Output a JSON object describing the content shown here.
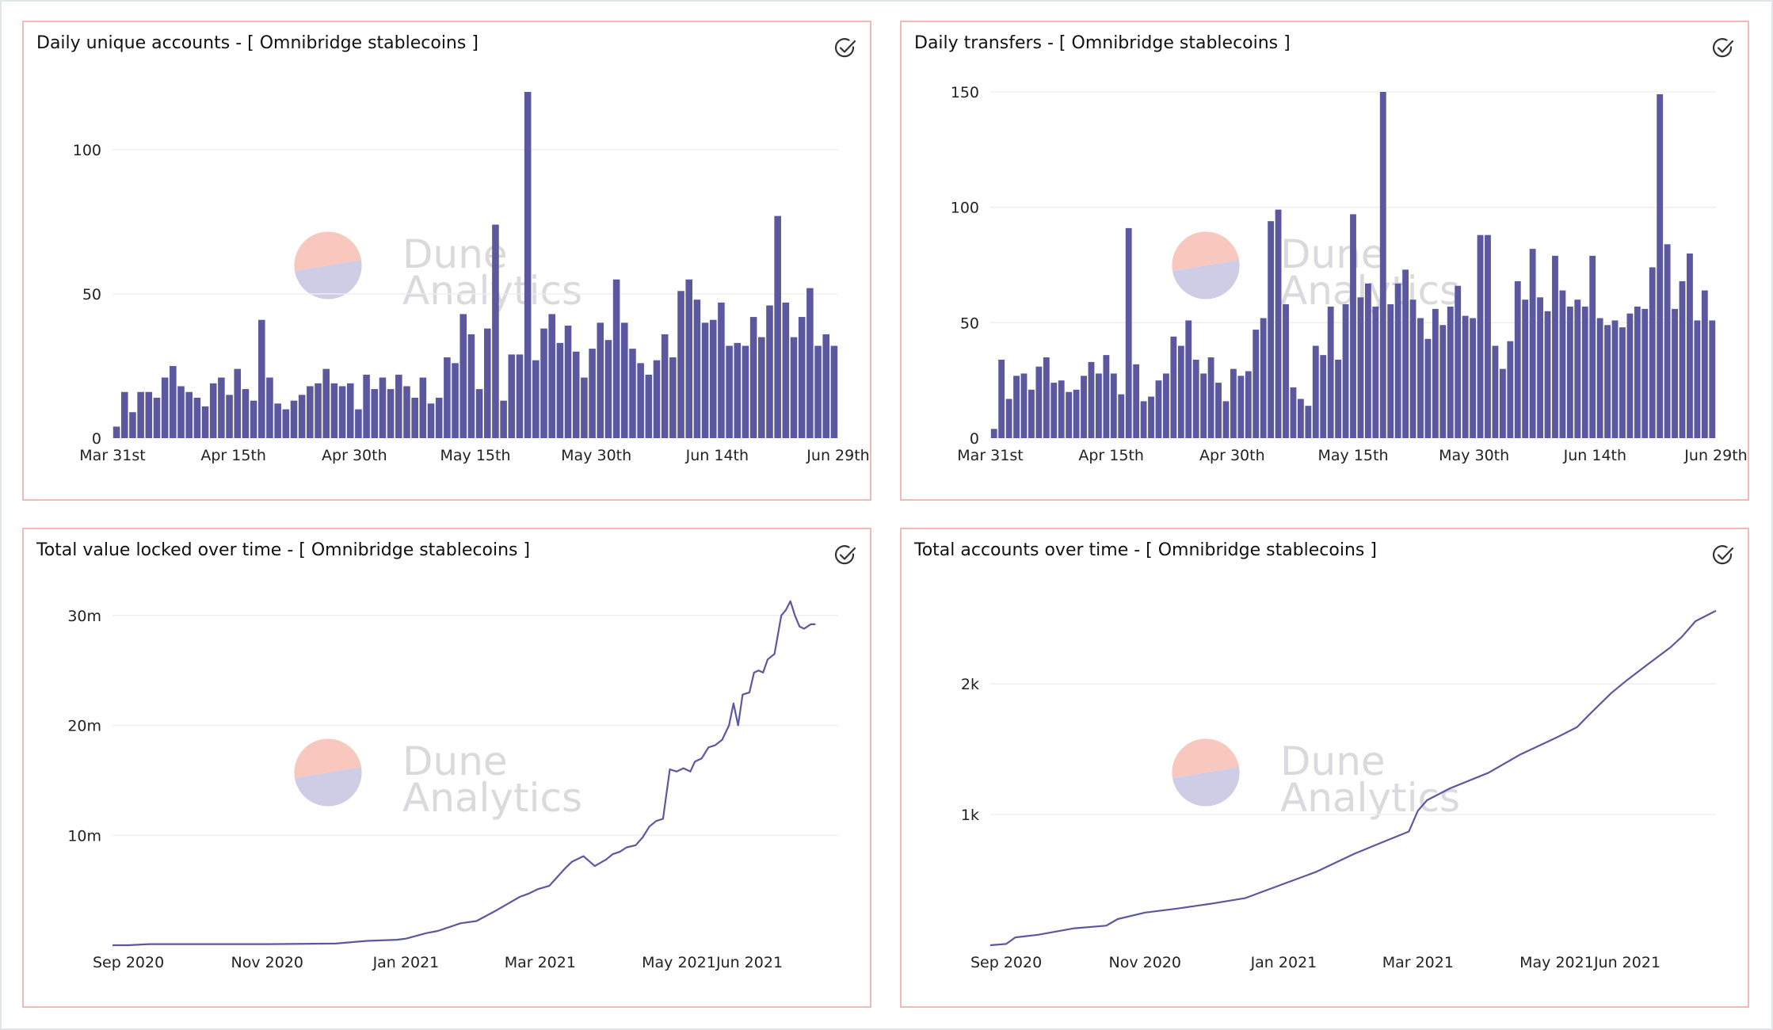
{
  "colors": {
    "accent": "#5b589f",
    "panel_border": "#f3b9b6",
    "grid": "#eceef0",
    "watermark_top": "#f8c8be",
    "watermark_bottom": "#cfcde6"
  },
  "watermark": {
    "line1": "Dune",
    "line2": "Analytics"
  },
  "status_icon": "check-circle-icon",
  "chart_data": [
    {
      "type": "bar",
      "title": "Daily unique accounts - [ Omnibridge stablecoins ]",
      "xlabel": "",
      "ylabel": "",
      "ylim": [
        0,
        120
      ],
      "yticks": [
        0,
        50,
        100
      ],
      "xticks": [
        {
          "label": "Mar 31st",
          "index": 0
        },
        {
          "label": "Apr 15th",
          "index": 15
        },
        {
          "label": "Apr 30th",
          "index": 30
        },
        {
          "label": "May 15th",
          "index": 45
        },
        {
          "label": "May 30th",
          "index": 60
        },
        {
          "label": "Jun 14th",
          "index": 75
        },
        {
          "label": "Jun 29th",
          "index": 90
        }
      ],
      "grid": true,
      "values": [
        4,
        16,
        9,
        16,
        16,
        14,
        21,
        25,
        18,
        16,
        14,
        11,
        19,
        21,
        15,
        24,
        17,
        13,
        41,
        21,
        12,
        10,
        13,
        15,
        18,
        19,
        24,
        19,
        18,
        19,
        10,
        22,
        17,
        21,
        17,
        22,
        18,
        14,
        21,
        12,
        14,
        28,
        26,
        43,
        36,
        17,
        38,
        74,
        13,
        29,
        29,
        120,
        27,
        38,
        43,
        33,
        39,
        30,
        21,
        31,
        40,
        34,
        55,
        40,
        31,
        26,
        22,
        27,
        36,
        28,
        51,
        55,
        48,
        40,
        41,
        47,
        32,
        33,
        32,
        42,
        35,
        46,
        77,
        47,
        35,
        42,
        52,
        32,
        36,
        32
      ]
    },
    {
      "type": "bar",
      "title": "Daily transfers - [ Omnibridge stablecoins ]",
      "xlabel": "",
      "ylabel": "",
      "ylim": [
        0,
        150
      ],
      "yticks": [
        0,
        50,
        100,
        150
      ],
      "xticks": [
        {
          "label": "Mar 31st",
          "index": 0
        },
        {
          "label": "Apr 15th",
          "index": 15
        },
        {
          "label": "Apr 30th",
          "index": 30
        },
        {
          "label": "May 15th",
          "index": 45
        },
        {
          "label": "May 30th",
          "index": 60
        },
        {
          "label": "Jun 14th",
          "index": 75
        },
        {
          "label": "Jun 29th",
          "index": 90
        }
      ],
      "grid": true,
      "values": [
        4,
        34,
        17,
        27,
        28,
        21,
        31,
        35,
        24,
        25,
        20,
        21,
        27,
        33,
        28,
        36,
        28,
        19,
        91,
        32,
        16,
        18,
        25,
        28,
        44,
        40,
        51,
        34,
        28,
        35,
        24,
        16,
        30,
        27,
        29,
        47,
        52,
        94,
        99,
        58,
        22,
        17,
        14,
        40,
        36,
        57,
        34,
        58,
        97,
        61,
        67,
        57,
        150,
        58,
        67,
        73,
        60,
        52,
        43,
        56,
        49,
        57,
        66,
        53,
        52,
        88,
        88,
        40,
        30,
        42,
        68,
        60,
        82,
        61,
        55,
        79,
        64,
        57,
        60,
        57,
        79,
        52,
        49,
        51,
        48,
        54,
        57,
        56,
        74,
        149,
        84,
        56,
        68,
        80,
        51,
        64,
        51
      ]
    },
    {
      "type": "line",
      "title": "Total value locked over time - [ Omnibridge stablecoins ]",
      "xlabel": "",
      "ylabel": "",
      "ylim": [
        0,
        31500000
      ],
      "yticks": [
        {
          "value": 10000000,
          "label": "10m"
        },
        {
          "value": 20000000,
          "label": "20m"
        },
        {
          "value": 30000000,
          "label": "30m"
        }
      ],
      "xrange": [
        "2020-08-25",
        "2021-07-10"
      ],
      "xticks": [
        "Sep 2020",
        "Nov 2020",
        "Jan 2021",
        "Mar 2021",
        "May 2021",
        "Jun 2021"
      ],
      "grid": true,
      "x": [
        "2020-08-25",
        "2020-09-01",
        "2020-09-10",
        "2020-10-01",
        "2020-11-01",
        "2020-12-01",
        "2020-12-15",
        "2020-12-28",
        "2021-01-01",
        "2021-01-10",
        "2021-01-15",
        "2021-01-25",
        "2021-02-01",
        "2021-02-10",
        "2021-02-15",
        "2021-02-20",
        "2021-02-24",
        "2021-02-28",
        "2021-03-05",
        "2021-03-12",
        "2021-03-15",
        "2021-03-20",
        "2021-03-25",
        "2021-03-30",
        "2021-04-02",
        "2021-04-05",
        "2021-04-08",
        "2021-04-12",
        "2021-04-15",
        "2021-04-18",
        "2021-04-21",
        "2021-04-24",
        "2021-04-27",
        "2021-04-30",
        "2021-05-03",
        "2021-05-06",
        "2021-05-08",
        "2021-05-11",
        "2021-05-14",
        "2021-05-17",
        "2021-05-20",
        "2021-05-23",
        "2021-05-25",
        "2021-05-27",
        "2021-05-29",
        "2021-06-01",
        "2021-06-03",
        "2021-06-05",
        "2021-06-07",
        "2021-06-09",
        "2021-06-12",
        "2021-06-15",
        "2021-06-17",
        "2021-06-19",
        "2021-06-21",
        "2021-06-23",
        "2021-06-25",
        "2021-06-28",
        "2021-06-30"
      ],
      "values": [
        0,
        0,
        100000,
        100000,
        100000,
        150000,
        400000,
        500000,
        600000,
        1100000,
        1300000,
        2000000,
        2200000,
        3200000,
        3800000,
        4400000,
        4700000,
        5100000,
        5400000,
        7000000,
        7600000,
        8100000,
        7200000,
        7800000,
        8300000,
        8500000,
        8900000,
        9100000,
        9800000,
        10800000,
        11300000,
        11500000,
        16000000,
        15800000,
        16100000,
        15800000,
        16700000,
        17000000,
        18000000,
        18200000,
        18700000,
        20000000,
        22000000,
        20000000,
        22800000,
        23000000,
        24800000,
        25000000,
        24800000,
        26000000,
        26500000,
        30000000,
        30500000,
        31300000,
        30000000,
        29000000,
        28800000,
        29200000,
        29200000
      ]
    },
    {
      "type": "line",
      "title": "Total accounts over time - [ Omnibridge stablecoins ]",
      "xlabel": "",
      "ylabel": "",
      "ylim": [
        0,
        2650
      ],
      "yticks": [
        {
          "value": 1000,
          "label": "1k"
        },
        {
          "value": 2000,
          "label": "2k"
        }
      ],
      "xrange": [
        "2020-08-25",
        "2021-07-10"
      ],
      "xticks": [
        "Sep 2020",
        "Nov 2020",
        "Jan 2021",
        "Mar 2021",
        "May 2021",
        "Jun 2021"
      ],
      "grid": true,
      "x": [
        "2020-08-25",
        "2020-09-01",
        "2020-09-05",
        "2020-09-15",
        "2020-10-01",
        "2020-10-15",
        "2020-10-20",
        "2020-11-01",
        "2020-11-15",
        "2020-12-01",
        "2020-12-15",
        "2021-01-01",
        "2021-01-15",
        "2021-02-01",
        "2021-02-15",
        "2021-02-25",
        "2021-03-01",
        "2021-03-05",
        "2021-03-15",
        "2021-04-01",
        "2021-04-15",
        "2021-05-01",
        "2021-05-10",
        "2021-05-15",
        "2021-05-25",
        "2021-06-01",
        "2021-06-10",
        "2021-06-20",
        "2021-06-25",
        "2021-07-01",
        "2021-07-10"
      ],
      "values": [
        0,
        10,
        60,
        80,
        130,
        150,
        200,
        250,
        280,
        320,
        360,
        470,
        560,
        700,
        800,
        870,
        1030,
        1110,
        1200,
        1320,
        1460,
        1590,
        1670,
        1760,
        1930,
        2030,
        2150,
        2280,
        2360,
        2480,
        2560
      ]
    }
  ]
}
